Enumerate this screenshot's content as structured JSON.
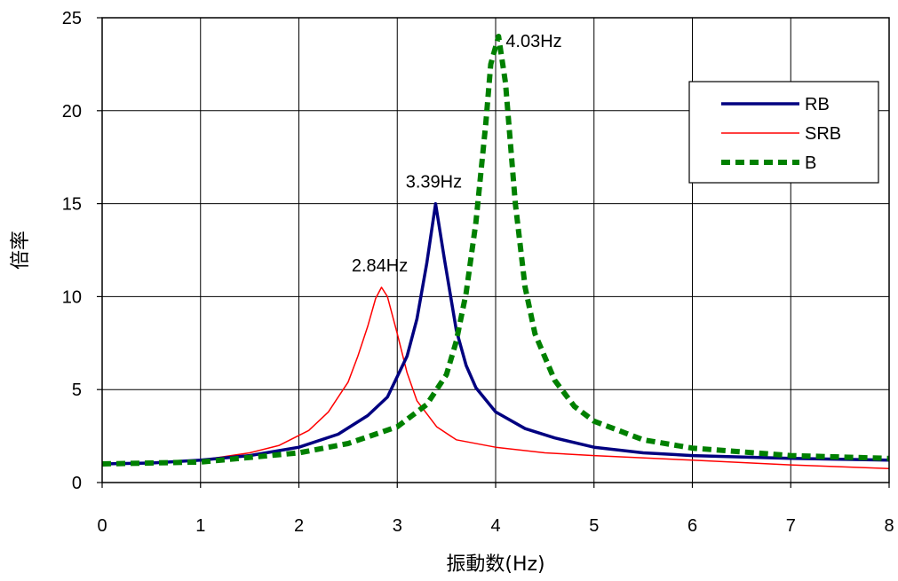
{
  "chart_data": {
    "type": "line",
    "title": "",
    "xlabel": "振動数(Hz)",
    "ylabel": "倍率",
    "xlim": [
      0,
      8
    ],
    "ylim": [
      0,
      25
    ],
    "xticks": [
      "0",
      "1",
      "2",
      "3",
      "4",
      "5",
      "6",
      "7",
      "8"
    ],
    "yticks": [
      "0",
      "5",
      "10",
      "15",
      "20",
      "25"
    ],
    "grid": true,
    "legend_position": "top-right",
    "series": [
      {
        "name": "RB",
        "color": "#000080",
        "style": "solid-thick",
        "x": [
          0,
          0.5,
          1.0,
          1.5,
          2.0,
          2.4,
          2.7,
          2.9,
          3.1,
          3.2,
          3.3,
          3.39,
          3.48,
          3.6,
          3.7,
          3.8,
          4.0,
          4.3,
          4.6,
          5.0,
          5.5,
          6.0,
          7.0,
          8.0
        ],
        "y": [
          1.0,
          1.05,
          1.2,
          1.45,
          1.9,
          2.6,
          3.6,
          4.6,
          6.8,
          8.8,
          11.8,
          15.0,
          12.0,
          8.2,
          6.3,
          5.1,
          3.8,
          2.9,
          2.4,
          1.9,
          1.6,
          1.45,
          1.3,
          1.2
        ]
      },
      {
        "name": "SRB",
        "color": "#ff0000",
        "style": "solid-thin",
        "x": [
          0,
          0.5,
          1.0,
          1.5,
          1.8,
          2.1,
          2.3,
          2.5,
          2.6,
          2.7,
          2.78,
          2.84,
          2.9,
          3.0,
          3.1,
          3.2,
          3.4,
          3.6,
          4.0,
          4.5,
          5.0,
          6.0,
          7.0,
          8.0
        ],
        "y": [
          1.0,
          1.05,
          1.2,
          1.6,
          2.0,
          2.8,
          3.8,
          5.4,
          6.8,
          8.4,
          9.9,
          10.5,
          10.0,
          8.0,
          5.9,
          4.4,
          3.0,
          2.3,
          1.9,
          1.6,
          1.45,
          1.2,
          0.95,
          0.75
        ]
      },
      {
        "name": "B",
        "color": "#008000",
        "style": "dashed-thick",
        "x": [
          0,
          1.0,
          2.0,
          2.5,
          3.0,
          3.3,
          3.5,
          3.6,
          3.7,
          3.8,
          3.9,
          3.95,
          4.03,
          4.1,
          4.2,
          4.3,
          4.4,
          4.6,
          4.8,
          5.0,
          5.5,
          6.0,
          7.0,
          8.0
        ],
        "y": [
          1.0,
          1.1,
          1.6,
          2.1,
          3.0,
          4.2,
          5.8,
          7.6,
          10.2,
          14.0,
          19.3,
          22.5,
          24.0,
          21.5,
          15.0,
          10.5,
          8.0,
          5.5,
          4.1,
          3.3,
          2.3,
          1.85,
          1.45,
          1.3
        ]
      }
    ],
    "annotations": [
      {
        "text": "2.84Hz",
        "x": 2.84,
        "y": 10.5
      },
      {
        "text": "3.39Hz",
        "x": 3.39,
        "y": 15.0
      },
      {
        "text": "4.03Hz",
        "x": 4.03,
        "y": 24.0
      }
    ]
  }
}
